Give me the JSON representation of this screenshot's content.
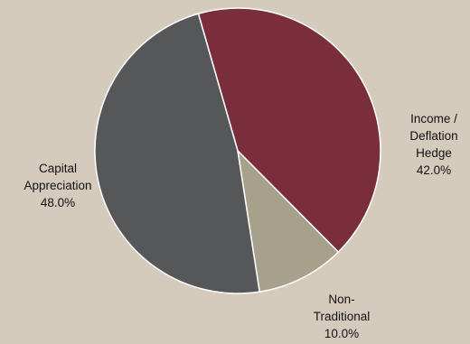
{
  "chart_data": {
    "type": "pie",
    "start_angle_deg": -16,
    "slices": [
      {
        "name_lines": [
          "Income /",
          "Deflation",
          "Hedge"
        ],
        "value": 42.0,
        "value_label": "42.0%",
        "color": "#7a2e3c"
      },
      {
        "name_lines": [
          "Non-",
          "Traditional"
        ],
        "value": 10.0,
        "value_label": "10.0%",
        "color": "#a7a08b"
      },
      {
        "name_lines": [
          "Capital",
          "Appreciation"
        ],
        "value": 48.0,
        "value_label": "48.0%",
        "color": "#555759"
      }
    ],
    "background": "#d4cbbd",
    "slice_border": "#ffffff"
  }
}
